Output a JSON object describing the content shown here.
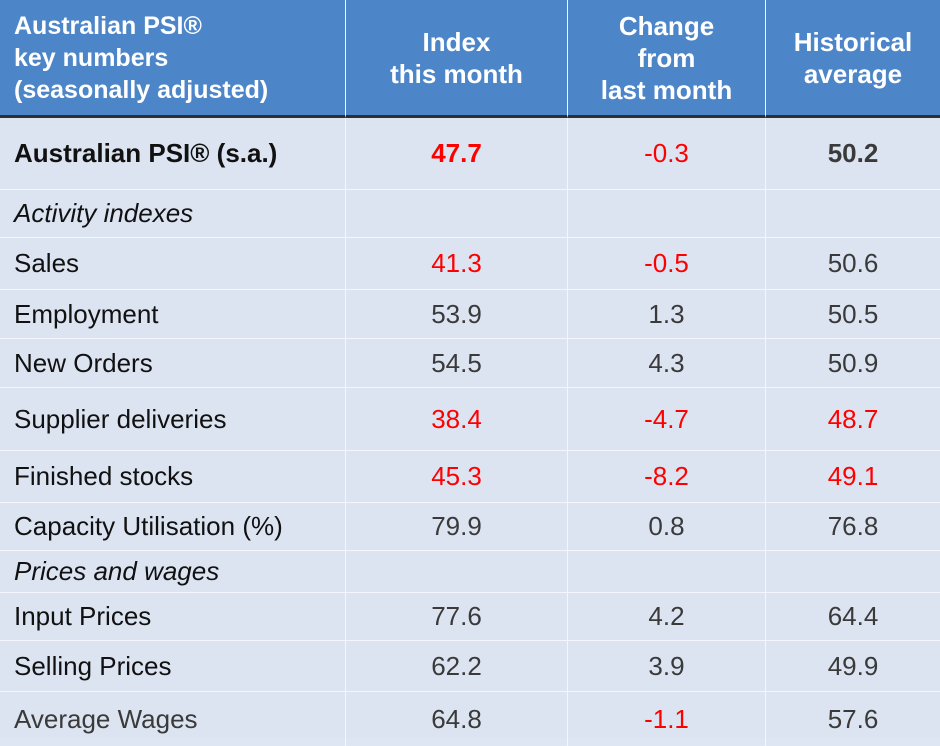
{
  "header": {
    "col1": [
      "Australian PSI®",
      "key numbers",
      "(seasonally adjusted)"
    ],
    "col2": [
      "Index",
      "this month"
    ],
    "col3": [
      "Change",
      "from",
      "last month"
    ],
    "col4": [
      "Historical",
      "average"
    ]
  },
  "rows": [
    {
      "label": "Australian PSI® (s.a.)",
      "index": "47.7",
      "change": "-0.3",
      "avg": "50.2"
    },
    {
      "section": "Activity indexes"
    },
    {
      "label": "Sales",
      "index": "41.3",
      "change": "-0.5",
      "avg": "50.6"
    },
    {
      "label": "Employment",
      "index": "53.9",
      "change": "1.3",
      "avg": "50.5"
    },
    {
      "label": "New Orders",
      "index": "54.5",
      "change": "4.3",
      "avg": "50.9"
    },
    {
      "label": "Supplier deliveries",
      "index": "38.4",
      "change": "-4.7",
      "avg": "48.7"
    },
    {
      "label": "Finished stocks",
      "index": "45.3",
      "change": "-8.2",
      "avg": "49.1"
    },
    {
      "label": "Capacity Utilisation (%)",
      "index": "79.9",
      "change": "0.8",
      "avg": "76.8"
    },
    {
      "section": "Prices and wages"
    },
    {
      "label": "Input Prices",
      "index": "77.6",
      "change": "4.2",
      "avg": "64.4"
    },
    {
      "label": "Selling Prices",
      "index": "62.2",
      "change": "3.9",
      "avg": "49.9"
    },
    {
      "label": "Average Wages",
      "index": "64.8",
      "change": "-1.1",
      "avg": "57.6"
    }
  ],
  "colors": {
    "header_bg": "#4d86c8",
    "body_bg": "#dce4f2",
    "highlight_red": "#ff0000",
    "header_text": "#ffffff"
  }
}
